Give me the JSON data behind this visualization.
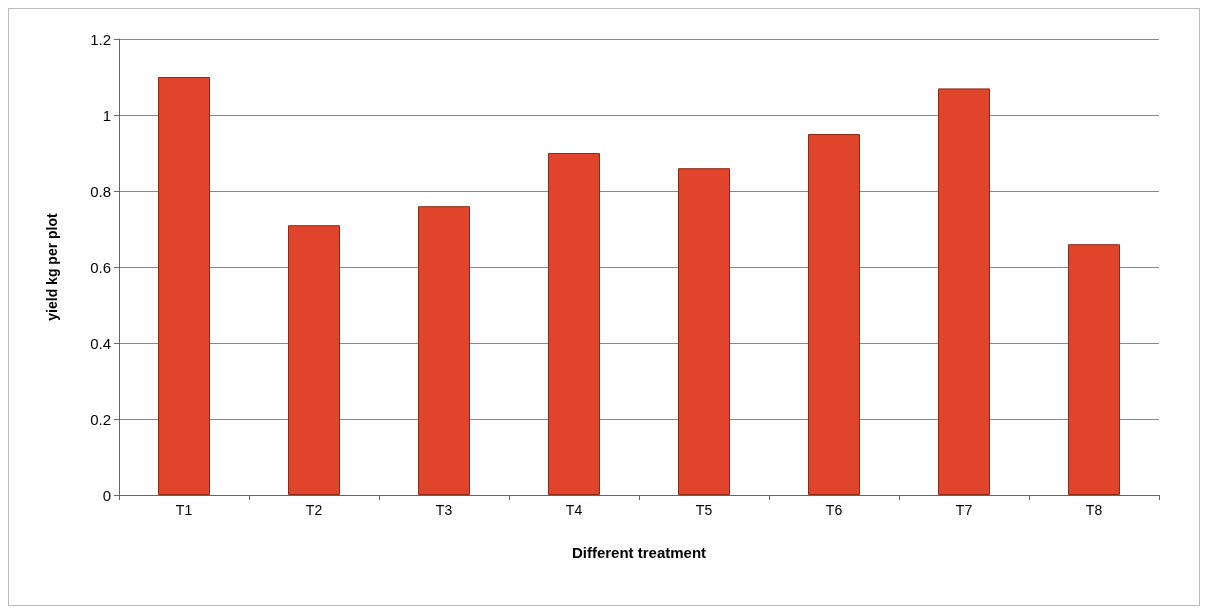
{
  "chart_data": {
    "type": "bar",
    "xlabel": "Different treatment",
    "ylabel": "yield kg per plot",
    "categories": [
      "T1",
      "T2",
      "T3",
      "T4",
      "T5",
      "T6",
      "T7",
      "T8"
    ],
    "values": [
      1.1,
      0.71,
      0.76,
      0.9,
      0.86,
      0.95,
      1.07,
      0.66
    ],
    "color": "#e0442a",
    "ylim": [
      0,
      1.2
    ],
    "yticks": [
      0,
      0.2,
      0.4,
      0.6,
      0.8,
      1,
      1.2
    ],
    "grid": "y"
  }
}
